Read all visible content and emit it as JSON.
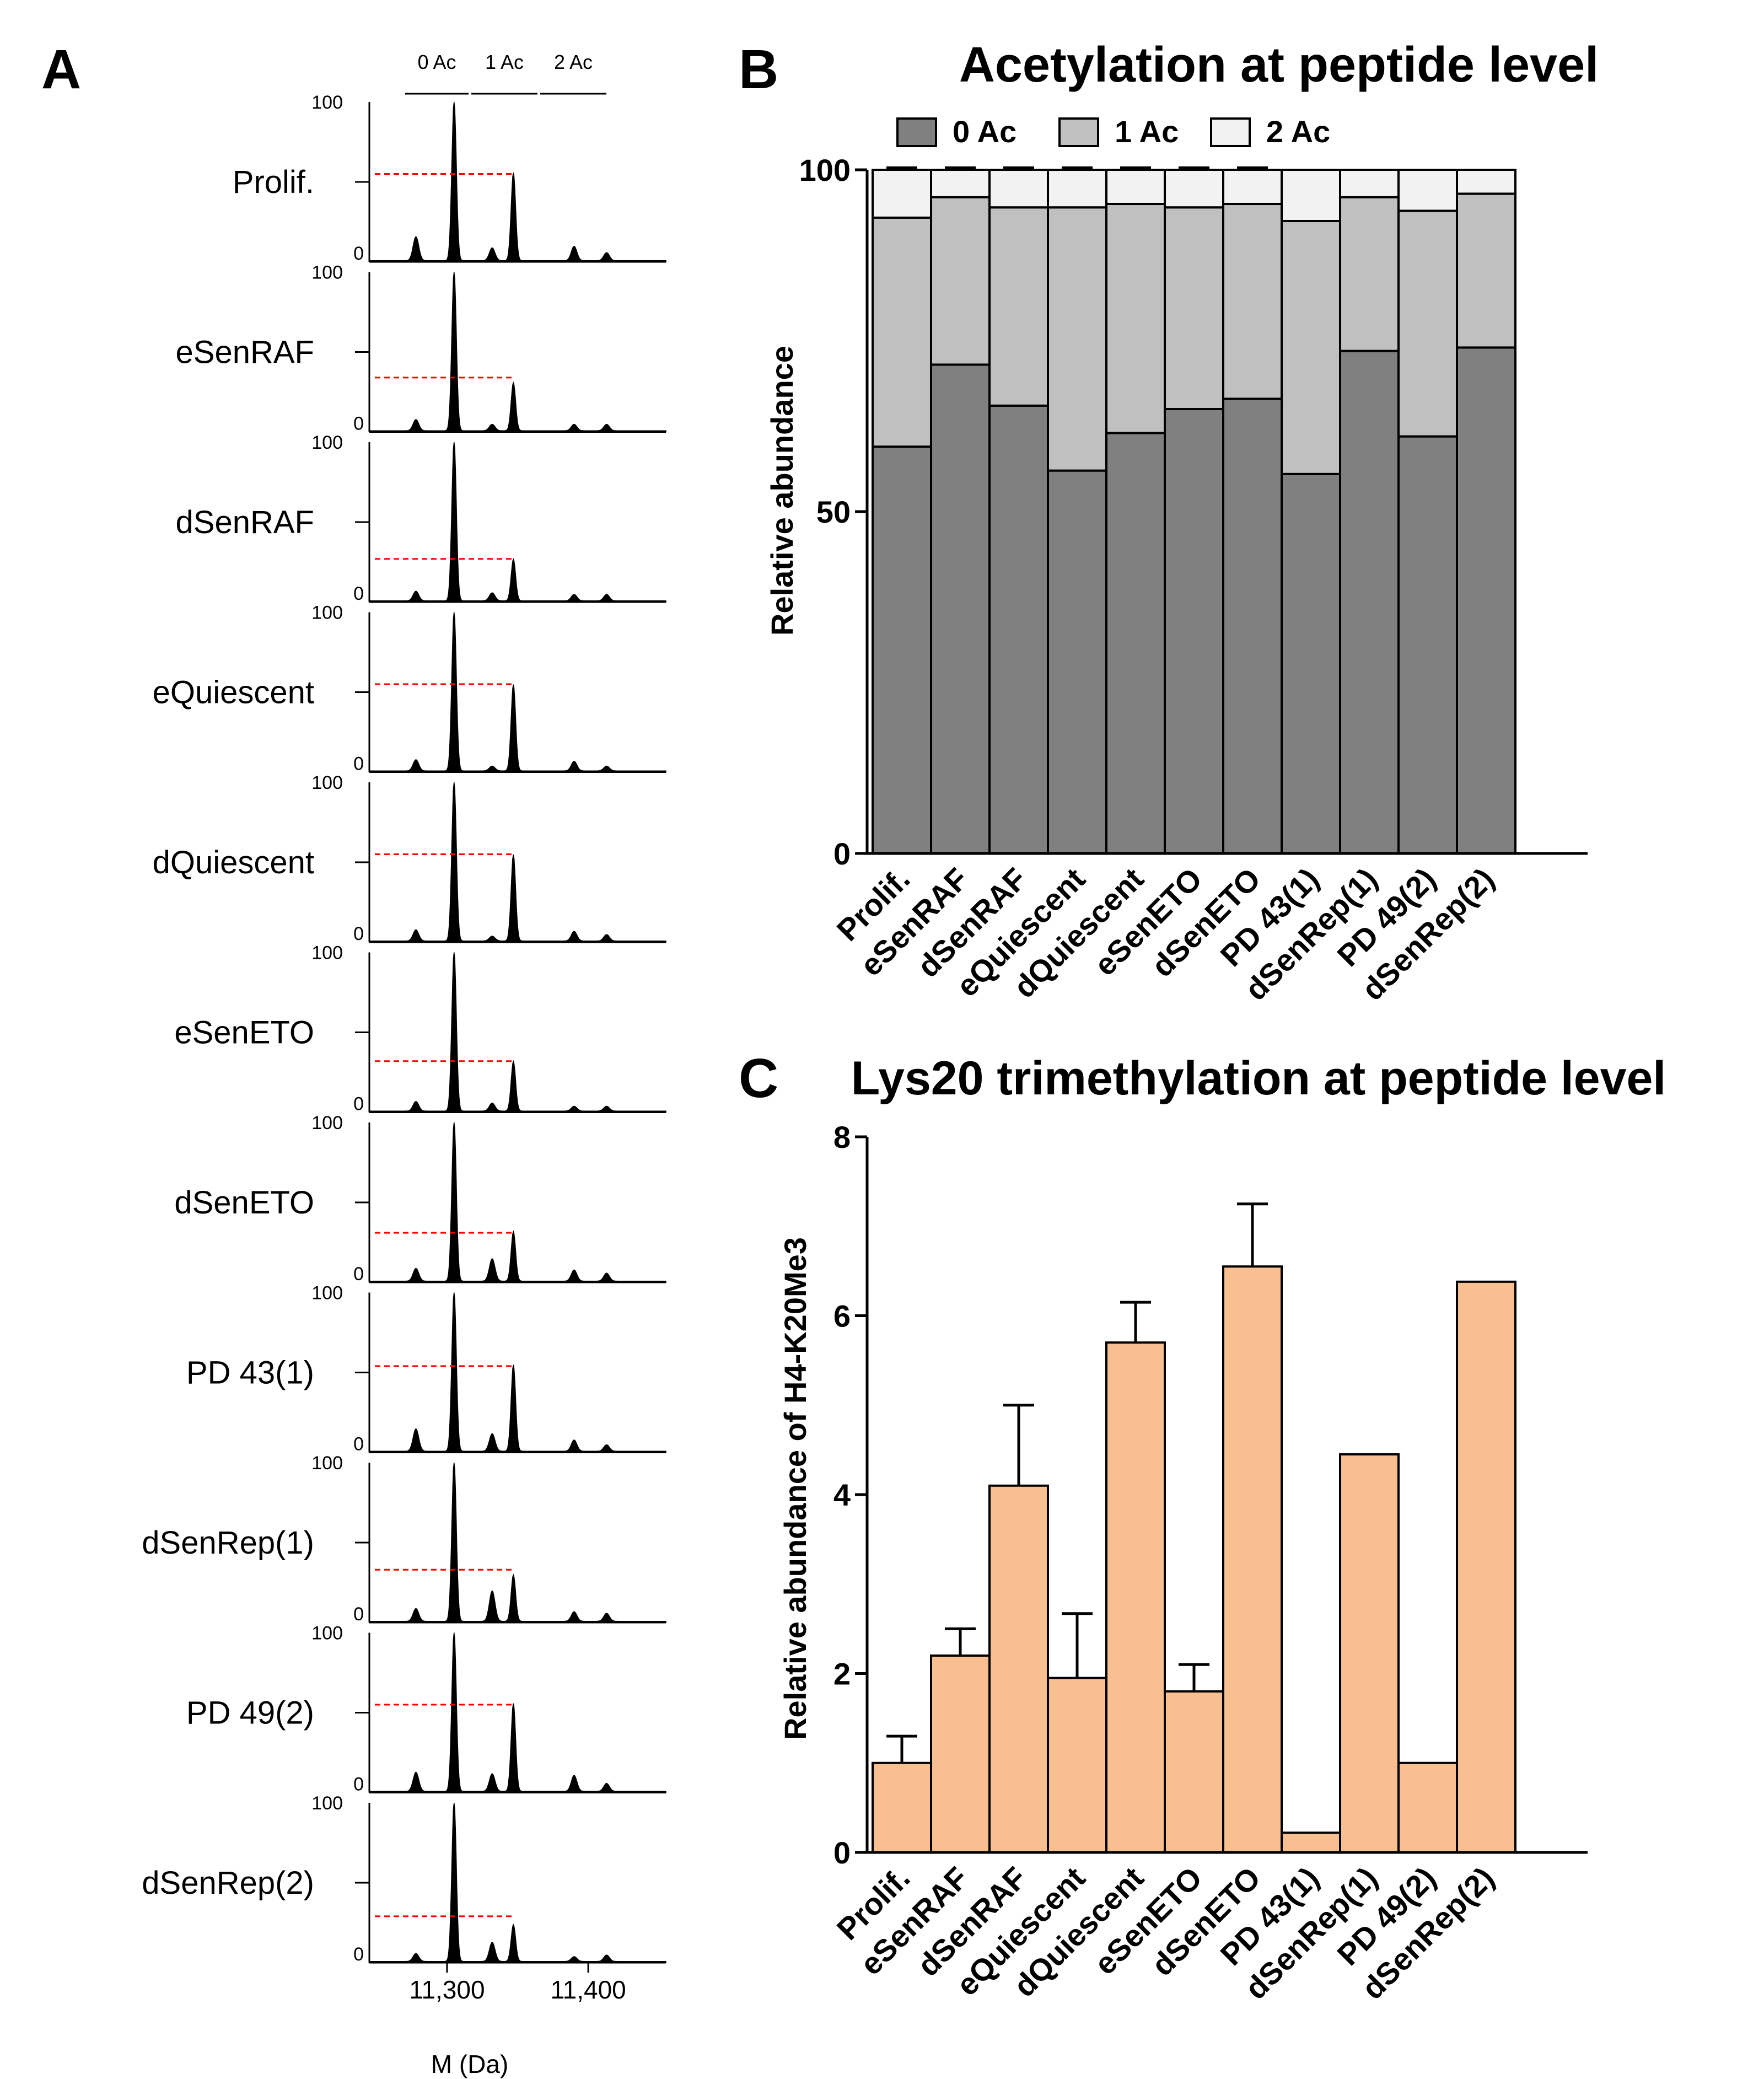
{
  "panel_labels": {
    "a": "A",
    "b": "B",
    "c": "C"
  },
  "colors": {
    "ac0": "#808080",
    "ac1": "#c0c0c0",
    "ac2": "#f2f2f2",
    "me3": "#f8c090",
    "spectrum": "#000000",
    "dashed": "#ff0000",
    "axis": "#000000"
  },
  "chart_data": [
    {
      "id": "panel-a",
      "type": "line",
      "title": "",
      "xlabel": "M (Da)",
      "x_ticks": [
        "11,300",
        "11,400"
      ],
      "x_tick_values": [
        11300,
        11400
      ],
      "xlim": [
        11245,
        11455
      ],
      "y_tick_labels": [
        "100",
        "0"
      ],
      "ylim": [
        0,
        100
      ],
      "header_labels": [
        "0 Ac",
        "1 Ac",
        "2 Ac"
      ],
      "peak_masses": [
        11278,
        11305,
        11332,
        11347,
        11390,
        11413
      ],
      "samples": [
        {
          "name": "Prolif.",
          "peak_heights": [
            15,
            100,
            8,
            55,
            9,
            5
          ],
          "dashed_level": 55
        },
        {
          "name": "eSenRAF",
          "peak_heights": [
            7,
            100,
            4,
            30,
            4,
            4
          ],
          "dashed_level": 34
        },
        {
          "name": "dSenRAF",
          "peak_heights": [
            6,
            100,
            5,
            26,
            4,
            4
          ],
          "dashed_level": 27
        },
        {
          "name": "eQuiescent",
          "peak_heights": [
            7,
            100,
            3,
            54,
            6,
            3
          ],
          "dashed_level": 55
        },
        {
          "name": "dQuiescent",
          "peak_heights": [
            7,
            100,
            3,
            54,
            6,
            4
          ],
          "dashed_level": 55
        },
        {
          "name": "eSenETO",
          "peak_heights": [
            6,
            100,
            5,
            31,
            3,
            3
          ],
          "dashed_level": 32
        },
        {
          "name": "dSenETO",
          "peak_heights": [
            8,
            100,
            14,
            31,
            7,
            5
          ],
          "dashed_level": 31
        },
        {
          "name": "PD 43(1)",
          "peak_heights": [
            14,
            100,
            11,
            54,
            7,
            4
          ],
          "dashed_level": 54
        },
        {
          "name": "dSenRep(1)",
          "peak_heights": [
            8,
            100,
            19,
            29,
            6,
            5
          ],
          "dashed_level": 33
        },
        {
          "name": "PD 49(2)",
          "peak_heights": [
            12,
            100,
            11,
            55,
            10,
            5
          ],
          "dashed_level": 55
        },
        {
          "name": "dSenRep(2)",
          "peak_heights": [
            5,
            100,
            12,
            23,
            3,
            4
          ],
          "dashed_level": 29
        }
      ]
    },
    {
      "id": "panel-b",
      "type": "bar",
      "stacked": true,
      "title": "Acetylation at peptide level",
      "xlabel": "",
      "ylabel": "Relative abundance",
      "ylim": [
        0,
        100
      ],
      "y_ticks": [
        0,
        50,
        100
      ],
      "categories": [
        "Prolif.",
        "eSenRAF",
        "dSenRAF",
        "eQuiescent",
        "dQuiescent",
        "eSenETO",
        "dSenETO",
        "PD 43(1)",
        "dSenRep(1)",
        "PD 49(2)",
        "dSenRep(2)"
      ],
      "series": [
        {
          "name": "0 Ac",
          "values": [
            59.5,
            71.5,
            65.5,
            56,
            61.5,
            65,
            66.5,
            55.5,
            73.5,
            61,
            74
          ],
          "errors": [
            2,
            3,
            2,
            3,
            2,
            1.5,
            2.5,
            null,
            null,
            null,
            null
          ]
        },
        {
          "name": "1 Ac",
          "values": [
            33.5,
            24.5,
            29,
            38.5,
            33.5,
            29.5,
            28.5,
            37,
            22.5,
            33,
            22.5
          ],
          "errors": [
            1.5,
            2.5,
            1.5,
            2.5,
            1.5,
            1.5,
            2.5,
            null,
            null,
            null,
            null
          ]
        },
        {
          "name": "2 Ac",
          "values": [
            7,
            4,
            5.5,
            5.5,
            5,
            5.5,
            5,
            7.5,
            4,
            6,
            3.5
          ],
          "errors": [
            0.3,
            0.3,
            0.3,
            0.3,
            0.3,
            0.3,
            0.3,
            null,
            null,
            null,
            null
          ]
        }
      ],
      "legend": "top"
    },
    {
      "id": "panel-c",
      "type": "bar",
      "title": "Lys20 trimethylation at peptide level",
      "xlabel": "",
      "ylabel": "Relative abundance of H4-K20Me3",
      "ylim": [
        0,
        8
      ],
      "y_ticks": [
        0,
        2,
        4,
        6,
        8
      ],
      "categories": [
        "Prolif.",
        "eSenRAF",
        "dSenRAF",
        "eQuiescent",
        "dQuiescent",
        "eSenETO",
        "dSenETO",
        "PD 43(1)",
        "dSenRep(1)",
        "PD 49(2)",
        "dSenRep(2)"
      ],
      "values": [
        1.0,
        2.2,
        4.1,
        1.95,
        5.7,
        1.8,
        6.55,
        0.22,
        4.45,
        1.0,
        6.38
      ],
      "errors": [
        0.3,
        0.3,
        0.9,
        0.72,
        0.45,
        0.3,
        0.7,
        null,
        null,
        null,
        null
      ]
    }
  ]
}
